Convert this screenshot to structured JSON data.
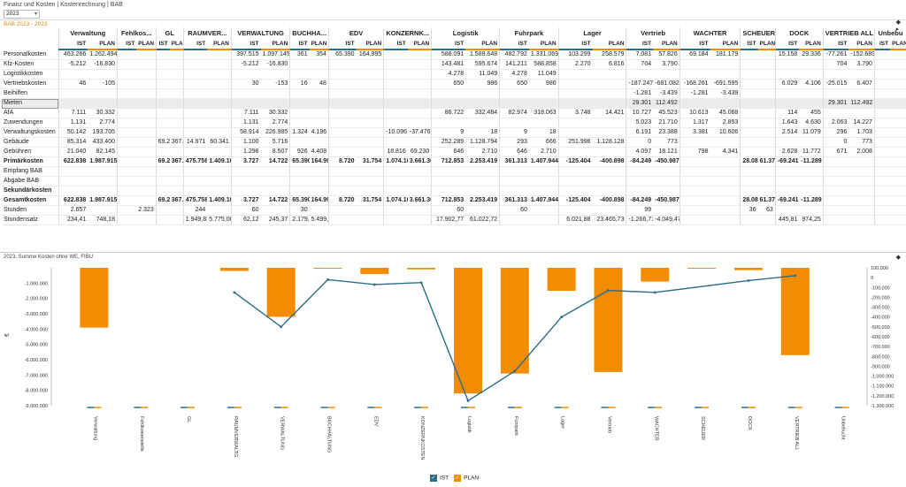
{
  "header": {
    "breadcrumb": "Finanz und Kosten | Kostenrechnung | BAB",
    "year": "2023",
    "bab_title": "BAB 2023 - 2023"
  },
  "table": {
    "columns": [
      "Verwaltung",
      "Fehlkos...",
      "GL",
      "RAUMVER...",
      "VERWALTUNG",
      "BUCHHA...",
      "EDV",
      "KONZERNK...",
      "Logistik",
      "Fuhrpark",
      "Lager",
      "Vertrieb",
      "WACHTER",
      "SCHEUER",
      "DOCK",
      "VERTRIEB ALL",
      "Unbebu"
    ],
    "ist_label": "IST",
    "plan_label": "PLAN",
    "rows": [
      {
        "label": "Personalkosten",
        "cells": [
          "463.266",
          "1.262.494",
          "",
          "",
          "",
          "",
          "",
          "",
          "397.515",
          "1.097.145",
          "361",
          "354",
          "65.390",
          "164.995",
          "",
          "",
          "586.091",
          "1.589.648",
          "482.792",
          "1.331.069",
          "103.299",
          "258.579",
          "7.081",
          "57.826",
          "69.184",
          "181.179",
          "",
          "",
          "15.158",
          "29.336",
          "-77.261",
          "-152.689"
        ]
      },
      {
        "label": "Kfz-Kosten",
        "cells": [
          "-5.212",
          "-16.830",
          "",
          "",
          "",
          "",
          "",
          "",
          "-5.212",
          "-16.830",
          "",
          "",
          "",
          "",
          "",
          "",
          "143.481",
          "595.674",
          "141.211",
          "588.858",
          "2.270",
          "6.816",
          "704",
          "3.790",
          "",
          "",
          "",
          "",
          "",
          "",
          "704",
          "3.790"
        ]
      },
      {
        "label": "Logistikkosten",
        "cells": [
          "",
          "",
          "",
          "",
          "",
          "",
          "",
          "",
          "",
          "",
          "",
          "",
          "",
          "",
          "",
          "",
          "4.278",
          "11.049",
          "4.278",
          "11.049",
          "",
          "",
          "",
          "",
          "",
          "",
          "",
          "",
          "",
          "",
          "",
          ""
        ]
      },
      {
        "label": "Vertriebskosten",
        "cells": [
          "46",
          "-105",
          "",
          "",
          "",
          "",
          "",
          "",
          "30",
          "-153",
          "16",
          "48",
          "",
          "",
          "",
          "",
          "650",
          "986",
          "650",
          "986",
          "",
          "",
          "-187.247",
          "-681.082",
          "-168.261",
          "-691.595",
          "",
          "",
          "6.029",
          "4.106",
          "-25.015",
          "6.407"
        ]
      },
      {
        "label": "Beihilfen",
        "cells": [
          "",
          "",
          "",
          "",
          "",
          "",
          "",
          "",
          "",
          "",
          "",
          "",
          "",
          "",
          "",
          "",
          "",
          "",
          "",
          "",
          "",
          "",
          "-1.281",
          "-3.439",
          "-1.281",
          "-3.439",
          "",
          "",
          "",
          "",
          "",
          ""
        ]
      },
      {
        "label": "Mieten",
        "cells": [
          "",
          "",
          "",
          "",
          "",
          "",
          "",
          "",
          "",
          "",
          "",
          "",
          "",
          "",
          "",
          "",
          "",
          "",
          "",
          "",
          "",
          "",
          "29.301",
          "112.492",
          "",
          "",
          "",
          "",
          "",
          "",
          "29.301",
          "112.492"
        ]
      },
      {
        "label": "AfA",
        "cells": [
          "7.111",
          "30.332",
          "",
          "",
          "",
          "",
          "",
          "",
          "7.111",
          "30.332",
          "",
          "",
          "",
          "",
          "",
          "",
          "86.722",
          "332.484",
          "82.974",
          "318.063",
          "3.748",
          "14.421",
          "10.727",
          "45.523",
          "10.613",
          "45.068",
          "",
          "",
          "114",
          "455",
          "",
          ""
        ]
      },
      {
        "label": "Zuwendungen",
        "cells": [
          "1.131",
          "2.774",
          "",
          "",
          "",
          "",
          "",
          "",
          "1.131",
          "2.774",
          "",
          "",
          "",
          "",
          "",
          "",
          "",
          "",
          "",
          "",
          "",
          "",
          "5.023",
          "21.710",
          "1.317",
          "2.853",
          "",
          "",
          "1.643",
          "4.630",
          "2.063",
          "14.227"
        ]
      },
      {
        "label": "Verwaltungskosten",
        "cells": [
          "50.142",
          "193.705",
          "",
          "",
          "",
          "",
          "",
          "",
          "58.914",
          "226.985",
          "1.324",
          "4.196",
          "",
          "",
          "-10.096",
          "-37.476",
          "9",
          "18",
          "9",
          "18",
          "",
          "",
          "6.191",
          "23.388",
          "3.381",
          "10.606",
          "",
          "",
          "2.514",
          "11.079",
          "296",
          "1.703"
        ]
      },
      {
        "label": "Gebäude",
        "cells": [
          "85.314",
          "433.400",
          "",
          "",
          "69.243",
          "367.343",
          "14.971",
          "60.341",
          "1.100",
          "5.716",
          "",
          "",
          "",
          "",
          "",
          "",
          "252.289",
          "1.128.794",
          "293",
          "666",
          "251.996",
          "1.128.128",
          "0",
          "773",
          "",
          "",
          "",
          "",
          "",
          "",
          "0",
          "773"
        ]
      },
      {
        "label": "Gebühren",
        "cells": [
          "21.040",
          "82.145",
          "",
          "",
          "",
          "",
          "",
          "",
          "1.298",
          "8.507",
          "926",
          "4.408",
          "",
          "",
          "18.816",
          "69.230",
          "646",
          "2.710",
          "646",
          "2.710",
          "",
          "",
          "4.097",
          "18.121",
          "798",
          "4.341",
          "",
          "",
          "2.628",
          "11.772",
          "671",
          "2.008"
        ]
      },
      {
        "label": "Primärkosten",
        "bold": true,
        "cells": [
          "622.838",
          "1.987.915",
          "",
          "",
          "69.243",
          "367.343",
          "475.758",
          "1.409.101",
          "3.727",
          "14.722",
          "65.390",
          "164.995",
          "8.720",
          "31.754",
          "1.074.166",
          "3.661.363",
          "712.853",
          "2.253.419",
          "361.313",
          "1.407.944",
          "-125.404",
          "-400.898",
          "-84.249",
          "-450.987",
          "",
          "",
          "28.086",
          "61.378",
          "-69.241",
          "-11.289",
          "",
          ""
        ]
      },
      {
        "label": "Empfang BAB",
        "cells": []
      },
      {
        "label": "Abgabe BAB",
        "cells": []
      },
      {
        "label": "Sekundärkosten",
        "section": true,
        "cells": []
      },
      {
        "label": "Gesamtkosten",
        "bold": true,
        "cells": [
          "622.838",
          "1.987.915",
          "",
          "",
          "69.243",
          "367.343",
          "475.758",
          "1.409.101",
          "3.727",
          "14.722",
          "65.390",
          "164.995",
          "8.720",
          "31.754",
          "1.074.166",
          "3.661.363",
          "712.853",
          "2.253.419",
          "361.313",
          "1.407.944",
          "-125.404",
          "-400.898",
          "-84.249",
          "-450.987",
          "",
          "",
          "28.086",
          "61.378",
          "-69.241",
          "-11.289",
          "",
          ""
        ]
      },
      {
        "label": "Stunden",
        "cells": [
          "2.657",
          "",
          "",
          "2.323",
          "",
          "",
          "244",
          "",
          "60",
          "",
          "30",
          "",
          "",
          "",
          "",
          "",
          "60",
          "",
          "60",
          "",
          "",
          "",
          "99",
          "",
          "",
          "",
          "36",
          "63",
          "",
          "",
          "",
          ""
        ]
      },
      {
        "label": "Stundensatz",
        "cells": [
          "234,41",
          "748,18",
          "",
          "",
          "",
          "",
          "1.949,83",
          "5.775,00",
          "62,12",
          "245,37",
          "2.179,67",
          "5.499,83",
          "",
          "",
          "",
          "",
          "17.902,77",
          "61.022,72",
          "",
          "",
          "6.021,88",
          "23.465,73",
          "-1.266,71",
          "-4.049,47",
          "",
          "",
          "",
          "",
          "445,81",
          "974,25",
          "",
          ""
        ]
      }
    ]
  },
  "chart": {
    "title": "2023, Summe Kosten ohne WE, FIBU",
    "ylabel": "€",
    "legend_ist": "IST",
    "legend_plan": "PLAN",
    "colors": {
      "ist": "#2c6e8a",
      "plan": "#f28c00"
    }
  },
  "chart_data": {
    "type": "bar",
    "categories": [
      "Verwaltung",
      "Fehlkostenstelle",
      "GL",
      "RAUMVERWALTG",
      "VERWALTUNG",
      "BUCHHALTUNG",
      "EDV",
      "KONZERNKOSTEN",
      "Logistik",
      "Fuhrpark",
      "Lager",
      "Vertrieb",
      "WACHTER",
      "SCHEUER",
      "DOCK",
      "VERTRIEB ALL",
      "Unbebucht"
    ],
    "series": [
      {
        "name": "PLAN",
        "axis": "left",
        "values": [
          -3900000,
          0,
          0,
          -200000,
          -3200000,
          -50000,
          -400000,
          -100000,
          -8200000,
          -6900000,
          -1500000,
          -6800000,
          -900000,
          -50000,
          -150000,
          -5700000,
          null
        ]
      },
      {
        "name": "IST",
        "axis": "right",
        "values": [
          null,
          null,
          null,
          -150000,
          -500000,
          -20000,
          -70000,
          -50000,
          -1250000,
          -950000,
          -400000,
          -130000,
          -150000,
          null,
          -30000,
          20000,
          null
        ]
      }
    ],
    "ylim_left": [
      -9000000,
      0
    ],
    "yticks_left": [
      "-1.000.000",
      "-2.000.000",
      "-3.000.000",
      "-4.000.000",
      "-5.000.000",
      "-6.000.000",
      "-7.000.000",
      "-8.000.000",
      "-9.000.000"
    ],
    "ylim_right": [
      -1300000,
      100000
    ],
    "yticks_right": [
      "100.000",
      "0",
      "-100.000",
      "-200.000",
      "-300.000",
      "-400.000",
      "-500.000",
      "-600.000",
      "-700.000",
      "-800.000",
      "-900.000",
      "-1.000.000",
      "-1.100.000",
      "-1.200.000",
      "-1.300.000"
    ],
    "ylabel": "€",
    "legend": "bottom-center"
  }
}
